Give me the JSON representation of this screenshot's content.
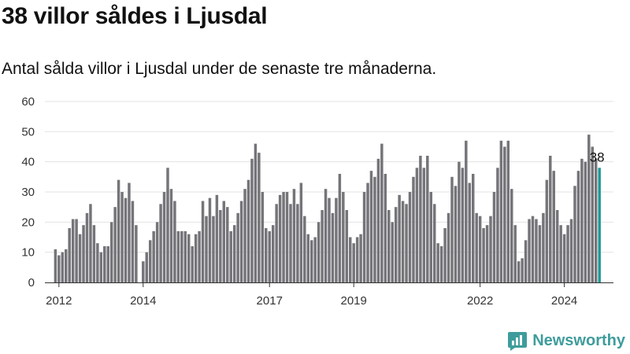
{
  "header": {
    "title": "38 villor såldes i Ljusdal",
    "subtitle": "Antal sålda villor i Ljusdal under de senaste tre månaderna."
  },
  "brand": {
    "name": "Newsworthy",
    "color": "#3f9c9c",
    "icon": "newsworthy-logo-icon"
  },
  "colors": {
    "bar": "#757479",
    "highlight": "#1f9a94",
    "grid": "#e3e3e3",
    "axis": "#333333"
  },
  "chart_data": {
    "type": "bar",
    "title": "38 villor såldes i Ljusdal",
    "subtitle": "Antal sålda villor i Ljusdal under de senaste tre månaderna.",
    "ylim": [
      0,
      60
    ],
    "yticks": [
      0,
      10,
      20,
      30,
      40,
      50,
      60
    ],
    "grid": true,
    "x_range": [
      "2011-09",
      "2025-03"
    ],
    "xticks": [
      {
        "label": "2012",
        "x": "2012-01"
      },
      {
        "label": "2014",
        "x": "2014-01"
      },
      {
        "label": "2017",
        "x": "2017-01"
      },
      {
        "label": "2019",
        "x": "2019-01"
      },
      {
        "label": "2022",
        "x": "2022-01"
      },
      {
        "label": "2024",
        "x": "2024-01"
      }
    ],
    "first_period": "2011-12",
    "values": [
      11,
      9,
      10,
      11,
      18,
      21,
      21,
      16,
      19,
      23,
      26,
      19,
      13,
      10,
      12,
      12,
      20,
      25,
      34,
      30,
      28,
      33,
      27,
      19,
      0,
      7,
      10,
      14,
      17,
      20,
      26,
      30,
      38,
      31,
      27,
      17,
      17,
      17,
      16,
      12,
      16,
      17,
      27,
      22,
      28,
      22,
      29,
      24,
      27,
      25,
      17,
      19,
      23,
      27,
      31,
      34,
      41,
      46,
      43,
      30,
      18,
      17,
      19,
      26,
      29,
      30,
      30,
      26,
      31,
      26,
      33,
      22,
      16,
      14,
      15,
      20,
      24,
      31,
      28,
      23,
      28,
      36,
      30,
      24,
      15,
      13,
      15,
      16,
      30,
      33,
      37,
      35,
      41,
      46,
      36,
      24,
      20,
      25,
      29,
      27,
      26,
      30,
      35,
      38,
      42,
      38,
      42,
      30,
      26,
      13,
      12,
      18,
      23,
      35,
      32,
      40,
      38,
      47,
      33,
      36,
      23,
      22,
      18,
      19,
      22,
      30,
      38,
      47,
      45,
      47,
      31,
      19,
      7,
      8,
      14,
      21,
      22,
      21,
      19,
      23,
      34,
      42,
      37,
      24,
      19,
      16,
      19,
      21,
      32,
      37,
      41,
      40,
      49,
      45,
      41,
      38
    ],
    "highlight_last": true,
    "annotations": [
      {
        "text": "38",
        "point": "last"
      }
    ]
  }
}
